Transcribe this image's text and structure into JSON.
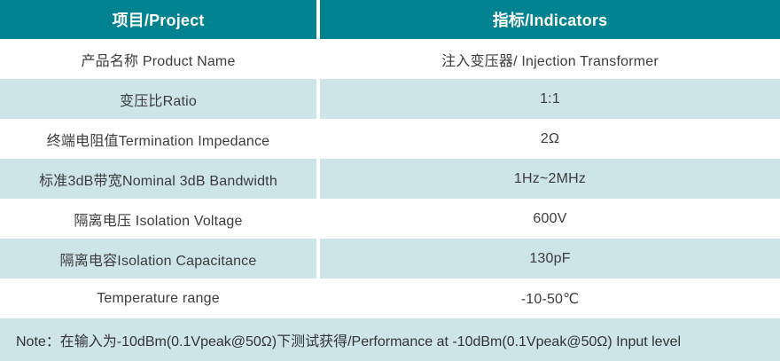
{
  "table": {
    "header": {
      "project_label": "项目/Project",
      "indicators_label": "指标/Indicators"
    },
    "rows": [
      {
        "project": "产品名称 Product Name",
        "indicator": "注入变压器/ Injection Transformer"
      },
      {
        "project": "变压比Ratio",
        "indicator": "1:1"
      },
      {
        "project": "终端电阻值Termination Impedance",
        "indicator": "2Ω"
      },
      {
        "project": "标准3dB带宽Nominal 3dB Bandwidth",
        "indicator": "1Hz~2MHz"
      },
      {
        "project": "隔离电压 Isolation Voltage",
        "indicator": "600V"
      },
      {
        "project": "隔离电容Isolation Capacitance",
        "indicator": "130pF"
      },
      {
        "project": "Temperature range",
        "indicator": "-10-50℃"
      }
    ],
    "note": "Note：在输入为-10dBm(0.1Vpeak@50Ω)下测试获得/Performance at -10dBm(0.1Vpeak@50Ω) Input level"
  },
  "colors": {
    "header_bg": "#008291",
    "header_text": "#ffffff",
    "alt_row_bg": "#cde4e9",
    "row_bg": "#ffffff",
    "body_text": "#3c3c3c"
  }
}
